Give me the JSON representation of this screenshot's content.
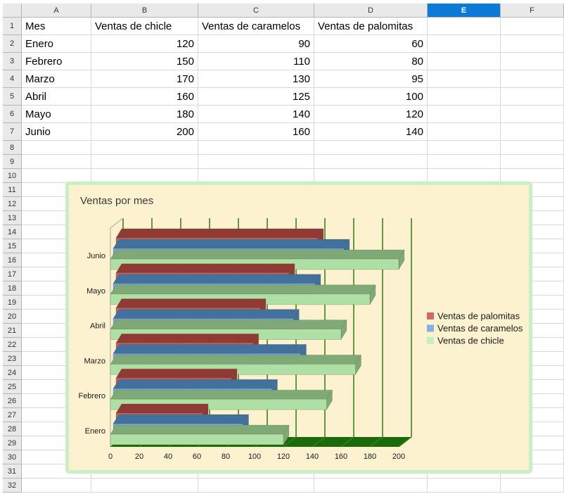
{
  "spreadsheet": {
    "column_headers": [
      "A",
      "B",
      "C",
      "D",
      "E",
      "F"
    ],
    "selected_column": "E",
    "row_numbers": [
      "1",
      "2",
      "3",
      "4",
      "5",
      "6",
      "7",
      "8",
      "9",
      "10",
      "11",
      "12",
      "13",
      "14",
      "15",
      "16",
      "17",
      "18",
      "19",
      "20",
      "21",
      "22",
      "23",
      "24",
      "25",
      "26",
      "27",
      "28",
      "29",
      "30",
      "31",
      "32"
    ],
    "cells": {
      "1": {
        "A": "Mes",
        "B": "Ventas de chicle",
        "C": "Ventas de caramelos",
        "D": "Ventas de palomitas"
      },
      "2": {
        "A": "Enero",
        "B": "120",
        "C": "90",
        "D": "60"
      },
      "3": {
        "A": "Febrero",
        "B": "150",
        "C": "110",
        "D": "80"
      },
      "4": {
        "A": "Marzo",
        "B": "170",
        "C": "130",
        "D": "95"
      },
      "5": {
        "A": "Abril",
        "B": "160",
        "C": "125",
        "D": "100"
      },
      "6": {
        "A": "Mayo",
        "B": "180",
        "C": "140",
        "D": "120"
      },
      "7": {
        "A": "Junio",
        "B": "200",
        "C": "160",
        "D": "140"
      }
    }
  },
  "chart_data": {
    "type": "bar",
    "orientation": "horizontal",
    "style": "3d",
    "title": "Ventas por mes",
    "categories": [
      "Enero",
      "Febrero",
      "Marzo",
      "Abril",
      "Mayo",
      "Junio"
    ],
    "category_display_order_top_to_bottom": [
      "Junio",
      "Mayo",
      "Abril",
      "Marzo",
      "Febrero",
      "Enero"
    ],
    "series": [
      {
        "name": "Ventas de chicle",
        "values": [
          120,
          150,
          170,
          160,
          180,
          200
        ],
        "color": "#aedfa4",
        "color_dark": "#7fa977",
        "legend_color": "#c6efc3"
      },
      {
        "name": "Ventas de caramelos",
        "values": [
          90,
          110,
          130,
          125,
          140,
          160
        ],
        "color": "#71a9de",
        "color_dark": "#41719c",
        "legend_color": "#7fb2e5"
      },
      {
        "name": "Ventas de palomitas",
        "values": [
          60,
          80,
          95,
          100,
          120,
          140
        ],
        "color": "#c4635c",
        "color_dark": "#8f3a34",
        "legend_color": "#cd6966"
      }
    ],
    "xlim": [
      0,
      200
    ],
    "xticks": [
      0,
      20,
      40,
      60,
      80,
      100,
      120,
      140,
      160,
      180,
      200
    ],
    "legend_position": "right",
    "legend_order": [
      "Ventas de palomitas",
      "Ventas de caramelos",
      "Ventas de chicle"
    ],
    "grid": true,
    "colors": {
      "background": "#fcf2cf",
      "border": "#c9efc4",
      "gridline": "#2f7a10",
      "floor": "#1c6b0b",
      "floor_hatch": "#2e8b12",
      "text": "#1a1a1a"
    }
  }
}
